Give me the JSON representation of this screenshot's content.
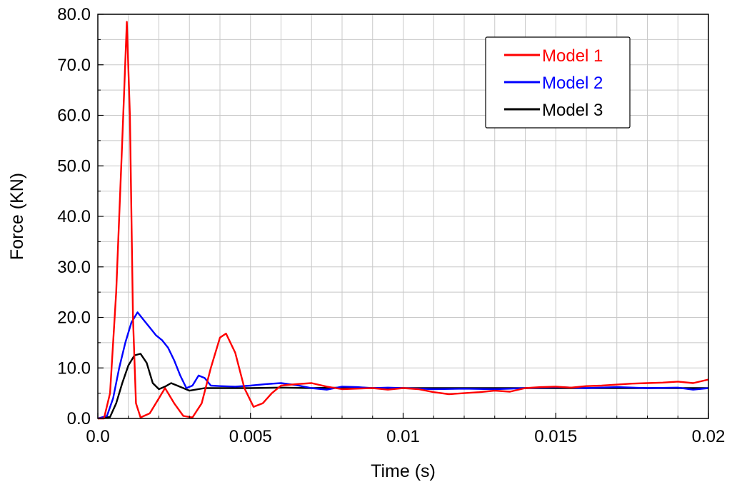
{
  "chart_data": {
    "type": "line",
    "xlabel": "Time (s)",
    "ylabel": "Force (KN)",
    "xlim": [
      0,
      0.02
    ],
    "ylim": [
      0,
      80
    ],
    "x_ticks": [
      "0.0",
      "0.005",
      "0.01",
      "0.015",
      "0.02"
    ],
    "y_ticks": [
      "0.0",
      "10.0",
      "20.0",
      "30.0",
      "40.0",
      "50.0",
      "60.0",
      "70.0",
      "80.0"
    ],
    "grid": true,
    "legend_position": "top-right",
    "series": [
      {
        "name": "Model 1",
        "color": "#ff0000",
        "points": [
          [
            0.0,
            0.0
          ],
          [
            0.0002,
            0.0
          ],
          [
            0.0004,
            5.0
          ],
          [
            0.0006,
            25.0
          ],
          [
            0.0008,
            55.0
          ],
          [
            0.00095,
            78.5
          ],
          [
            0.00105,
            60.0
          ],
          [
            0.00115,
            20.0
          ],
          [
            0.00125,
            3.0
          ],
          [
            0.0014,
            0.2
          ],
          [
            0.0017,
            1.0
          ],
          [
            0.002,
            4.0
          ],
          [
            0.0022,
            6.0
          ],
          [
            0.0025,
            3.0
          ],
          [
            0.0028,
            0.5
          ],
          [
            0.0031,
            0.2
          ],
          [
            0.0034,
            3.0
          ],
          [
            0.0037,
            10.0
          ],
          [
            0.004,
            16.0
          ],
          [
            0.0042,
            16.8
          ],
          [
            0.0045,
            13.0
          ],
          [
            0.0048,
            6.0
          ],
          [
            0.0051,
            2.3
          ],
          [
            0.0054,
            3.0
          ],
          [
            0.0057,
            5.0
          ],
          [
            0.006,
            6.5
          ],
          [
            0.0065,
            6.8
          ],
          [
            0.007,
            7.0
          ],
          [
            0.0075,
            6.3
          ],
          [
            0.008,
            5.8
          ],
          [
            0.009,
            6.0
          ],
          [
            0.0095,
            5.7
          ],
          [
            0.01,
            6.0
          ],
          [
            0.0105,
            5.8
          ],
          [
            0.011,
            5.2
          ],
          [
            0.0115,
            4.8
          ],
          [
            0.012,
            5.0
          ],
          [
            0.0125,
            5.2
          ],
          [
            0.013,
            5.5
          ],
          [
            0.0135,
            5.3
          ],
          [
            0.014,
            6.0
          ],
          [
            0.0145,
            6.2
          ],
          [
            0.015,
            6.3
          ],
          [
            0.0155,
            6.1
          ],
          [
            0.016,
            6.4
          ],
          [
            0.0165,
            6.5
          ],
          [
            0.017,
            6.7
          ],
          [
            0.0175,
            6.9
          ],
          [
            0.018,
            7.0
          ],
          [
            0.0185,
            7.1
          ],
          [
            0.019,
            7.3
          ],
          [
            0.0195,
            7.0
          ],
          [
            0.02,
            7.7
          ]
        ]
      },
      {
        "name": "Model 2",
        "color": "#0000ff",
        "points": [
          [
            0.0,
            0.0
          ],
          [
            0.0003,
            0.5
          ],
          [
            0.0005,
            4.0
          ],
          [
            0.0007,
            10.0
          ],
          [
            0.0009,
            15.0
          ],
          [
            0.0011,
            19.0
          ],
          [
            0.0013,
            21.0
          ],
          [
            0.0015,
            19.5
          ],
          [
            0.0017,
            18.0
          ],
          [
            0.0019,
            16.5
          ],
          [
            0.0021,
            15.5
          ],
          [
            0.0023,
            14.0
          ],
          [
            0.0025,
            11.5
          ],
          [
            0.0027,
            8.5
          ],
          [
            0.0029,
            6.0
          ],
          [
            0.0031,
            6.5
          ],
          [
            0.0033,
            8.5
          ],
          [
            0.0035,
            8.0
          ],
          [
            0.0037,
            6.5
          ],
          [
            0.004,
            6.4
          ],
          [
            0.0045,
            6.3
          ],
          [
            0.005,
            6.5
          ],
          [
            0.0055,
            6.8
          ],
          [
            0.006,
            7.0
          ],
          [
            0.0065,
            6.6
          ],
          [
            0.007,
            6.0
          ],
          [
            0.0075,
            5.7
          ],
          [
            0.008,
            6.3
          ],
          [
            0.0085,
            6.2
          ],
          [
            0.009,
            6.0
          ],
          [
            0.0095,
            6.1
          ],
          [
            0.01,
            6.0
          ],
          [
            0.011,
            5.8
          ],
          [
            0.012,
            5.9
          ],
          [
            0.013,
            5.8
          ],
          [
            0.014,
            6.0
          ],
          [
            0.015,
            6.2
          ],
          [
            0.016,
            6.0
          ],
          [
            0.017,
            6.2
          ],
          [
            0.018,
            6.0
          ],
          [
            0.019,
            6.1
          ],
          [
            0.0195,
            5.7
          ],
          [
            0.02,
            6.0
          ]
        ]
      },
      {
        "name": "Model 3",
        "color": "#000000",
        "points": [
          [
            0.0,
            0.0
          ],
          [
            0.0004,
            0.3
          ],
          [
            0.0006,
            3.0
          ],
          [
            0.0008,
            7.0
          ],
          [
            0.001,
            10.5
          ],
          [
            0.0012,
            12.5
          ],
          [
            0.0014,
            12.8
          ],
          [
            0.0016,
            11.0
          ],
          [
            0.0018,
            7.0
          ],
          [
            0.002,
            5.8
          ],
          [
            0.0022,
            6.3
          ],
          [
            0.0024,
            7.0
          ],
          [
            0.0026,
            6.5
          ],
          [
            0.0028,
            6.0
          ],
          [
            0.003,
            5.5
          ],
          [
            0.0035,
            6.0
          ],
          [
            0.004,
            6.0
          ],
          [
            0.005,
            6.0
          ],
          [
            0.006,
            6.1
          ],
          [
            0.007,
            6.0
          ],
          [
            0.008,
            6.1
          ],
          [
            0.009,
            6.0
          ],
          [
            0.01,
            6.0
          ],
          [
            0.011,
            6.0
          ],
          [
            0.012,
            6.0
          ],
          [
            0.013,
            6.0
          ],
          [
            0.014,
            6.0
          ],
          [
            0.015,
            6.0
          ],
          [
            0.016,
            6.0
          ],
          [
            0.017,
            6.0
          ],
          [
            0.018,
            6.0
          ],
          [
            0.019,
            6.0
          ],
          [
            0.02,
            6.0
          ]
        ]
      }
    ]
  }
}
